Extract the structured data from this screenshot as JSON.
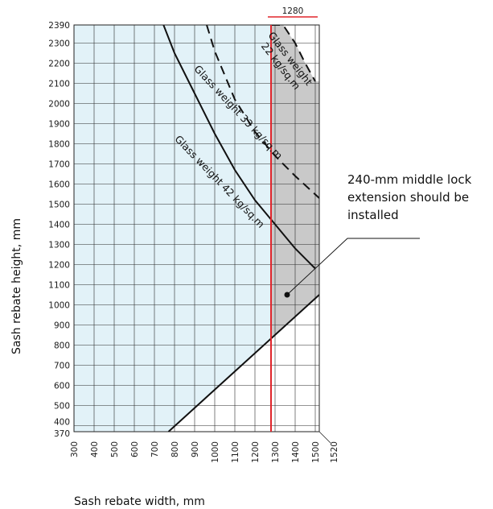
{
  "chart_data": {
    "type": "line",
    "xlabel": "Sash rebate width, mm",
    "ylabel": "Sash rebate height, mm",
    "xlim": [
      300,
      1520
    ],
    "ylim": [
      370,
      2390
    ],
    "x_ticks": [
      300,
      400,
      500,
      600,
      700,
      800,
      900,
      1000,
      1100,
      1200,
      1300,
      1400,
      1500,
      1520
    ],
    "y_ticks": [
      370,
      400,
      500,
      600,
      700,
      800,
      900,
      1000,
      1100,
      1200,
      1300,
      1400,
      1500,
      1600,
      1700,
      1800,
      1900,
      2000,
      2100,
      2200,
      2300,
      2390
    ],
    "grid": true,
    "colors": {
      "allowed_area": "#e2f2f8",
      "extension_area": "#c9c9c9",
      "limit_line": "#e0252b",
      "curves": "#111111"
    },
    "limit_line": {
      "x": 1280,
      "label": "1280"
    },
    "series": [
      {
        "name": "Glass weight 22 kg/sq.m",
        "style": "dashed",
        "x": [
          1280,
          1340,
          1400,
          1450,
          1500
        ],
        "y": [
          2390,
          2390,
          2300,
          2200,
          2110
        ]
      },
      {
        "name": "Glass weight 33 kg/sq.m",
        "style": "dashed",
        "x": [
          960,
          1000,
          1100,
          1200,
          1300,
          1400,
          1520
        ],
        "y": [
          2390,
          2260,
          2020,
          1860,
          1740,
          1640,
          1530
        ]
      },
      {
        "name": "Glass weight 42 kg/sq.m",
        "style": "solid",
        "x": [
          745,
          800,
          900,
          1000,
          1100,
          1200,
          1300,
          1400,
          1500
        ],
        "y": [
          2390,
          2250,
          2050,
          1850,
          1670,
          1520,
          1400,
          1280,
          1180
        ]
      },
      {
        "name": "",
        "style": "solid",
        "x": [
          770,
          1520
        ],
        "y": [
          370,
          1050
        ]
      }
    ],
    "annotation": {
      "lines": [
        "240-mm middle lock",
        "extension should be",
        "installed"
      ],
      "point": {
        "x": 1360,
        "y": 1050
      }
    }
  }
}
